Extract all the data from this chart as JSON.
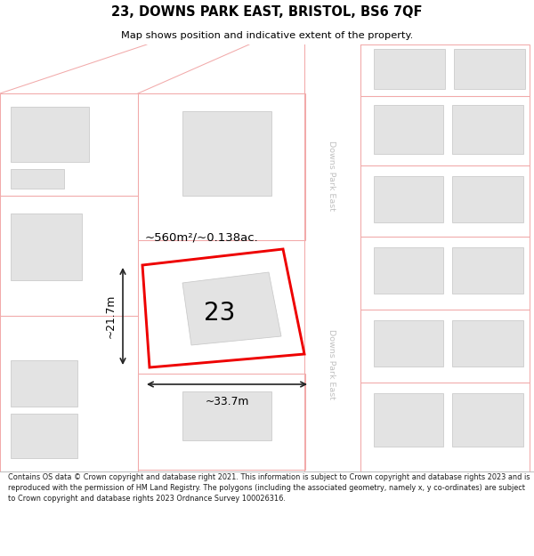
{
  "title": "23, DOWNS PARK EAST, BRISTOL, BS6 7QF",
  "subtitle": "Map shows position and indicative extent of the property.",
  "footer": "Contains OS data © Crown copyright and database right 2021. This information is subject to Crown copyright and database rights 2023 and is reproduced with the permission of HM Land Registry. The polygons (including the associated geometry, namely x, y co-ordinates) are subject to Crown copyright and database rights 2023 Ordnance Survey 100026316.",
  "map_bg": "#f7f7f7",
  "road_fill": "#ffffff",
  "bld_fill": "#e3e3e3",
  "bld_edge": "#c8c8c8",
  "plot_pink": "#f2aaaa",
  "highlight_red": "#ee0000",
  "dim_color": "#222222",
  "road_text_color": "#c0c0c0",
  "street_label": "Downs Park East",
  "area_label": "~560m²/~0.138ac.",
  "width_label": "~33.7m",
  "height_label": "~21.7m",
  "number_label": "23"
}
